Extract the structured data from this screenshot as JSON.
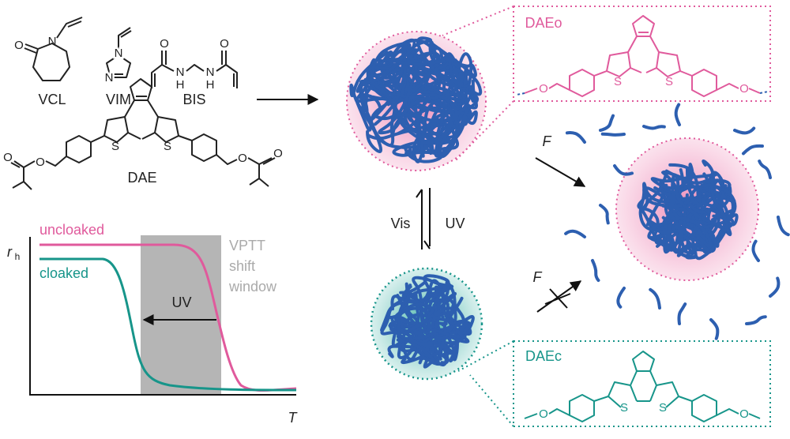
{
  "monomers": [
    {
      "label": "VCL",
      "atoms": [
        "O",
        "N"
      ]
    },
    {
      "label": "VIM",
      "atoms": [
        "N",
        "N"
      ]
    },
    {
      "label": "BIS",
      "atoms": [
        "O",
        "N",
        "H",
        "N",
        "H",
        "O"
      ]
    },
    {
      "label": "DAE",
      "atoms": [
        "O",
        "O",
        "S",
        "S",
        "O",
        "O"
      ]
    }
  ],
  "plot": {
    "y_label": "r",
    "y_label_sub": "h",
    "x_label": "T",
    "curves": [
      {
        "name": "uncloaked",
        "color": "#e05a9c"
      },
      {
        "name": "cloaked",
        "color": "#17958a"
      }
    ],
    "window_label": [
      "VPTT",
      "shift",
      "window"
    ],
    "arrow_label": "UV"
  },
  "scheme": {
    "switch": [
      "Vis",
      "UV"
    ],
    "forces": [
      "F",
      "F"
    ]
  },
  "insets": [
    {
      "label": "DAEo",
      "atoms": [
        "O",
        "S",
        "S",
        "O"
      ]
    },
    {
      "label": "DAEc",
      "atoms": [
        "O",
        "S",
        "S",
        "O"
      ]
    }
  ]
}
